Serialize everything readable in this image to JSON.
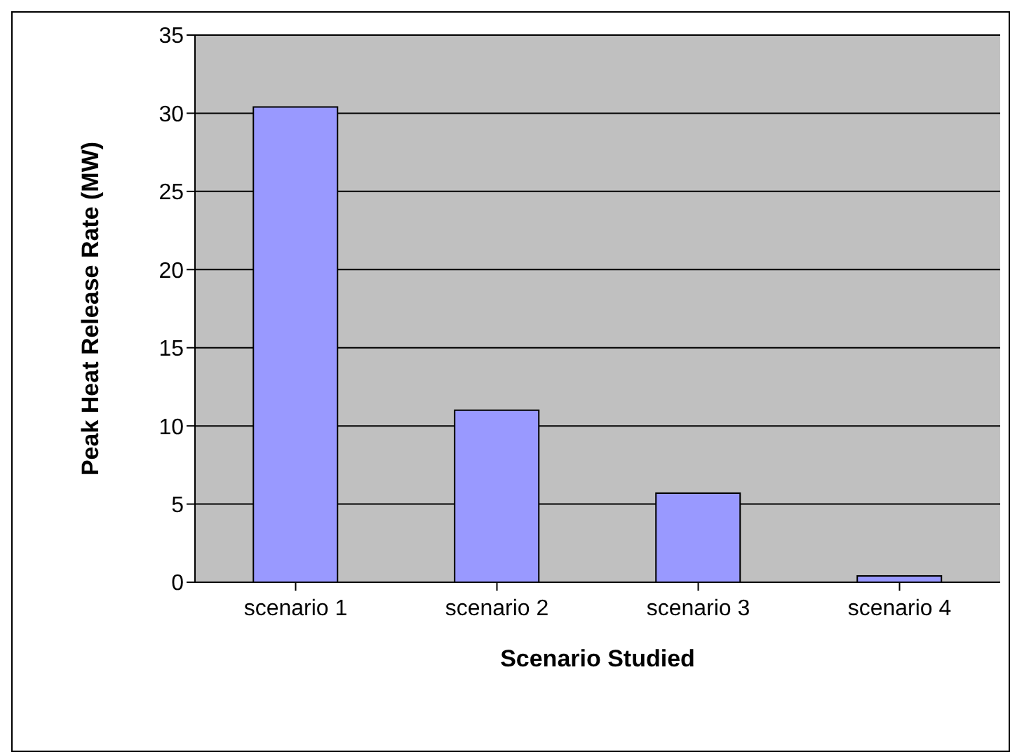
{
  "chart_data": {
    "type": "bar",
    "xlabel": "Scenario Studied",
    "ylabel": "Peak Heat Release Rate (MW)",
    "categories": [
      "scenario 1",
      "scenario 2",
      "scenario 3",
      "scenario 4"
    ],
    "values": [
      30.4,
      11,
      5.7,
      0.4
    ],
    "color": "#9999ff",
    "ylim": [
      0,
      35
    ],
    "yticks": [
      0,
      5,
      10,
      15,
      20,
      25,
      30,
      35
    ],
    "grid": "y"
  }
}
